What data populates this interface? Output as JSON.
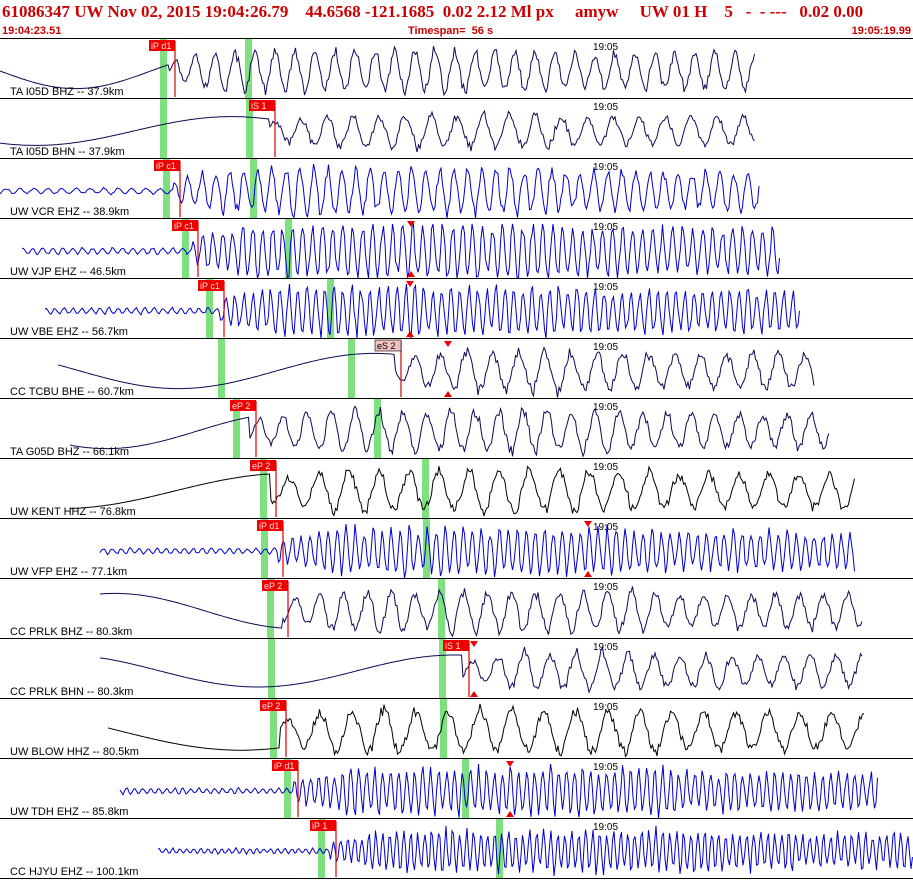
{
  "header": {
    "title": "61086347 UW Nov 02, 2015 19:04:26.79    44.6568 -121.1685  0.02 2.12 Ml px     amyw     UW 01 H    5   -  - ---   0.02 0.00",
    "start_time": "19:04:23.51",
    "timespan": "Timespan=  56 s",
    "end_time": "19:05:19.99"
  },
  "colors": {
    "header_text": "#cc0000",
    "pick_box": "#ee0000",
    "pick_box_uncertain": "#f3c0c0",
    "pick_line": "#dd0000",
    "marker_band": "#7fe07f",
    "trace_blue": "#0000cc",
    "trace_navy": "#0b0b55",
    "trace_black": "#000000",
    "divider": "#000000"
  },
  "minute_label": "19:05",
  "traces": [
    {
      "label": "TA I05D BHZ -- 37.9km",
      "pick": "iP d1",
      "pick_kind": "P",
      "color": "navy"
    },
    {
      "label": "TA I05D BHN -- 37.9km",
      "pick": "iS 1",
      "pick_kind": "S",
      "color": "navy"
    },
    {
      "label": "UW VCR EHZ -- 38.9km",
      "pick": "iP c1",
      "pick_kind": "P",
      "color": "blue"
    },
    {
      "label": "UW VJP EHZ -- 46.5km",
      "pick": "iP c1",
      "pick_kind": "P",
      "color": "blue"
    },
    {
      "label": "UW VBE EHZ -- 56.7km",
      "pick": "iP c1",
      "pick_kind": "P",
      "color": "blue"
    },
    {
      "label": "CC TCBU BHE -- 60.7km",
      "pick": "eS 2",
      "pick_kind": "S-uncertain",
      "color": "navy"
    },
    {
      "label": "TA G05D BHZ -- 66.1km",
      "pick": "eP 2",
      "pick_kind": "P",
      "color": "navy"
    },
    {
      "label": "UW KENT HHZ -- 76.8km",
      "pick": "eP 2",
      "pick_kind": "P",
      "color": "black"
    },
    {
      "label": "UW VFP EHZ -- 77.1km",
      "pick": "iP d1",
      "pick_kind": "P",
      "color": "blue"
    },
    {
      "label": "CC PRLK BHZ -- 80.3km",
      "pick": "eP 2",
      "pick_kind": "P",
      "color": "navy"
    },
    {
      "label": "CC PRLK BHN -- 80.3km",
      "pick": "iS 1",
      "pick_kind": "S",
      "color": "navy"
    },
    {
      "label": "UW BLOW HHZ -- 80.5km",
      "pick": "eP 2",
      "pick_kind": "P",
      "color": "black"
    },
    {
      "label": "UW TDH EHZ -- 85.8km",
      "pick": "iP d1",
      "pick_kind": "P",
      "color": "blue"
    },
    {
      "label": "CC HJYU EHZ -- 100.1km",
      "pick": "iP 1",
      "pick_kind": "P",
      "color": "blue"
    }
  ]
}
